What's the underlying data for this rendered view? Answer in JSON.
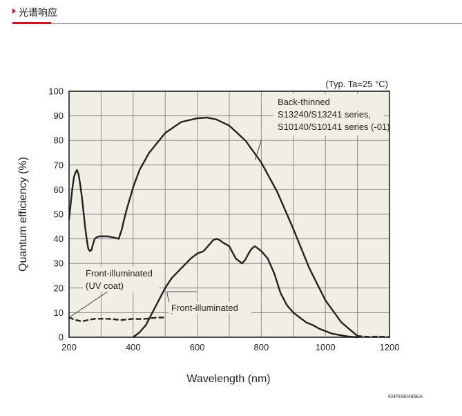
{
  "header": {
    "title": "光谱响应",
    "accent_color": "#c8161d"
  },
  "chart_data": {
    "type": "line",
    "title": "",
    "condition_note": "(Typ. Ta=25 °C)",
    "xlabel": "Wavelength (nm)",
    "ylabel": "Quantum efficiency (%)",
    "xlim": [
      200,
      1200
    ],
    "ylim": [
      0,
      100
    ],
    "x_ticks": [
      200,
      400,
      600,
      800,
      1000,
      1200
    ],
    "y_ticks": [
      0,
      10,
      20,
      30,
      40,
      50,
      60,
      70,
      80,
      90,
      100
    ],
    "grid": true,
    "plot_background": "#f1eee4",
    "line_color": "#222222",
    "doc_code": "KMPDB0485EA",
    "annotations": [
      {
        "lines": [
          "Back-thinned",
          "S13240/S13241 series,",
          "S10140/S10141 series (-01)"
        ]
      },
      {
        "lines": [
          "Front-illuminated",
          "(UV coat)"
        ]
      },
      {
        "lines": [
          "Front-illuminated"
        ]
      }
    ],
    "series": [
      {
        "style": "solid",
        "x": [
          200,
          205,
          210,
          215,
          220,
          225,
          230,
          235,
          240,
          245,
          250,
          255,
          260,
          265,
          270,
          275,
          280,
          285,
          290,
          295,
          300,
          320,
          340,
          350,
          355,
          360,
          365,
          370,
          380,
          400,
          420,
          450,
          500,
          550,
          600,
          630,
          660,
          700,
          750,
          800,
          850,
          900,
          950,
          1000,
          1050,
          1100
        ],
        "y": [
          48,
          54,
          60,
          65,
          67,
          68,
          66,
          62,
          57,
          51,
          45,
          40,
          36,
          35,
          35.5,
          38,
          40,
          40.5,
          40.8,
          41,
          41,
          41,
          40.5,
          40.2,
          40,
          42,
          44,
          47,
          52,
          61,
          68,
          75,
          83,
          87.5,
          89,
          89.3,
          88.5,
          86,
          80,
          71,
          59,
          44,
          28,
          15,
          6,
          0.5
        ]
      },
      {
        "style": "solid",
        "x": [
          400,
          420,
          440,
          460,
          480,
          500,
          520,
          550,
          580,
          600,
          620,
          640,
          650,
          660,
          670,
          680,
          700,
          720,
          740,
          750,
          760,
          770,
          780,
          790,
          800,
          820,
          840,
          860,
          880,
          900,
          920,
          940,
          960,
          980,
          1000,
          1020,
          1040,
          1060,
          1080,
          1100
        ],
        "y": [
          0,
          2,
          5,
          10,
          15,
          20,
          24,
          28,
          32,
          34,
          35,
          38,
          39.5,
          40,
          39.5,
          38.5,
          37,
          32,
          30,
          31.5,
          34,
          36,
          37,
          36,
          35,
          32,
          26,
          18,
          13,
          10,
          8,
          6,
          5,
          3.5,
          2.5,
          1.5,
          1,
          0.5,
          0.2,
          0
        ]
      },
      {
        "style": "dashed",
        "x": [
          200,
          220,
          240,
          260,
          280,
          300,
          320,
          340,
          360,
          380,
          400,
          420,
          440,
          460,
          480,
          500
        ],
        "y": [
          8,
          7,
          6.5,
          7,
          7.5,
          7.5,
          7.5,
          7.3,
          7,
          7.2,
          7.5,
          7.4,
          7.5,
          7.8,
          8,
          8
        ]
      },
      {
        "style": "dashed",
        "x": [
          1100,
          1120,
          1140,
          1160,
          1180,
          1200
        ],
        "y": [
          0.5,
          0.3,
          0.1,
          0.3,
          0.2,
          0.1
        ]
      }
    ]
  }
}
